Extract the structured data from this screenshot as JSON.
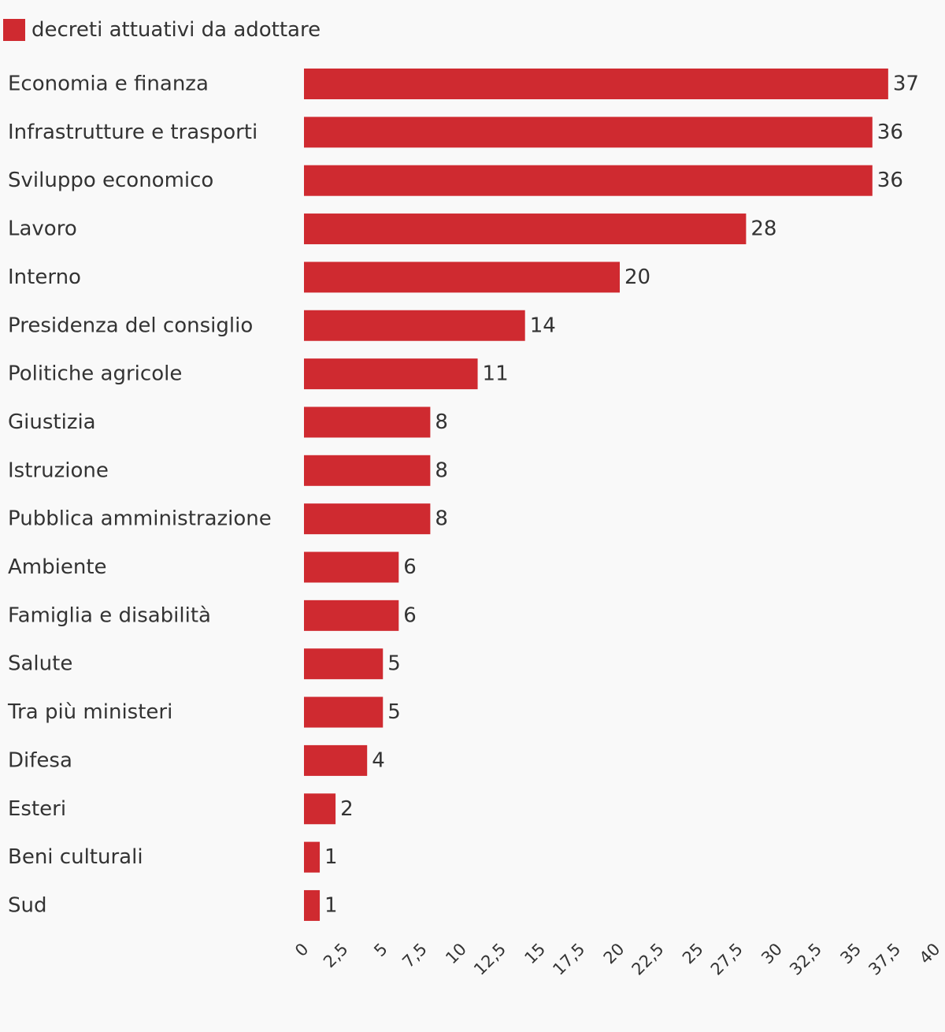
{
  "chart_data": {
    "type": "bar",
    "orientation": "horizontal",
    "categories": [
      "Economia e finanza",
      "Infrastrutture e trasporti",
      "Sviluppo economico",
      "Lavoro",
      "Interno",
      "Presidenza del consiglio",
      "Politiche agricole",
      "Giustizia",
      "Istruzione",
      "Pubblica amministrazione",
      "Ambiente",
      "Famiglia e disabilità",
      "Salute",
      "Tra più ministeri",
      "Difesa",
      "Esteri",
      "Beni culturali",
      "Sud"
    ],
    "series": [
      {
        "name": "decreti attuativi da adottare",
        "color": "#cf2a30",
        "values": [
          37,
          36,
          36,
          28,
          20,
          14,
          11,
          8,
          8,
          8,
          6,
          6,
          5,
          5,
          4,
          2,
          1,
          1
        ]
      }
    ],
    "xlim": [
      0,
      40
    ],
    "x_ticks": [
      "0",
      "2,5",
      "5",
      "7,5",
      "10",
      "12,5",
      "15",
      "17,5",
      "20",
      "22,5",
      "25",
      "27,5",
      "30",
      "32,5",
      "35",
      "37,5",
      "40"
    ],
    "legend_position": "top-left",
    "grid": false
  }
}
